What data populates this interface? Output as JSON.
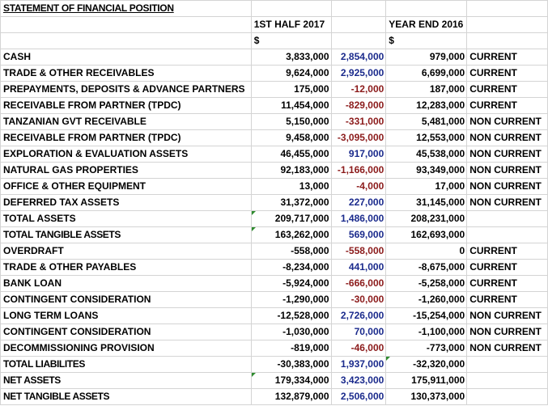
{
  "sheet": {
    "title": "STATEMENT OF FINANCIAL POSITION",
    "col_headers": {
      "current": "1ST HALF 2017",
      "prior": "YEAR END 2016"
    },
    "currency": {
      "current": "$",
      "prior": "$"
    },
    "rows": [
      {
        "label": "CASH",
        "current": "3,833,000",
        "change": "2,854,000",
        "change_sign": "pos",
        "prior": "979,000",
        "class": "CURRENT"
      },
      {
        "label": "TRADE & OTHER RECEIVABLES",
        "current": "9,624,000",
        "change": "2,925,000",
        "change_sign": "pos",
        "prior": "6,699,000",
        "class": "CURRENT"
      },
      {
        "label": "PREPAYMENTS, DEPOSITS & ADVANCE PARTNERS",
        "current": "175,000",
        "change": "-12,000",
        "change_sign": "neg",
        "prior": "187,000",
        "class": "CURRENT"
      },
      {
        "label": "RECEIVABLE FROM PARTNER (TPDC)",
        "current": "11,454,000",
        "change": "-829,000",
        "change_sign": "neg",
        "prior": "12,283,000",
        "class": "CURRENT"
      },
      {
        "label": "TANZANIAN GVT RECEIVABLE",
        "current": "5,150,000",
        "change": "-331,000",
        "change_sign": "neg",
        "prior": "5,481,000",
        "class": "NON CURRENT"
      },
      {
        "label": "RECEIVABLE FROM PARTNER (TPDC)",
        "current": "9,458,000",
        "change": "-3,095,000",
        "change_sign": "neg",
        "prior": "12,553,000",
        "class": "NON CURRENT"
      },
      {
        "label": "EXPLORATION & EVALUATION ASSETS",
        "current": "46,455,000",
        "change": "917,000",
        "change_sign": "pos",
        "prior": "45,538,000",
        "class": "NON CURRENT"
      },
      {
        "label": "NATURAL GAS PROPERTIES",
        "current": "92,183,000",
        "change": "-1,166,000",
        "change_sign": "neg",
        "prior": "93,349,000",
        "class": "NON CURRENT"
      },
      {
        "label": "OFFICE & OTHER EQUIPMENT",
        "current": "13,000",
        "change": "-4,000",
        "change_sign": "neg",
        "prior": "17,000",
        "class": "NON CURRENT"
      },
      {
        "label": "DEFERRED TAX ASSETS",
        "current": "31,372,000",
        "change": "227,000",
        "change_sign": "pos",
        "prior": "31,145,000",
        "class": "NON CURRENT"
      },
      {
        "label": "TOTAL ASSETS",
        "current": "209,717,000",
        "change": "1,486,000",
        "change_sign": "pos",
        "prior": "208,231,000",
        "class": "",
        "flag": true
      },
      {
        "label": "TOTAL TANGIBLE ASSETS",
        "current": "163,262,000",
        "change": "569,000",
        "change_sign": "pos",
        "prior": "162,693,000",
        "class": "",
        "flag": true,
        "tight": true
      },
      {
        "label": "OVERDRAFT",
        "current": "-558,000",
        "change": "-558,000",
        "change_sign": "neg",
        "prior": "0",
        "class": "CURRENT"
      },
      {
        "label": "TRADE & OTHER PAYABLES",
        "current": "-8,234,000",
        "change": "441,000",
        "change_sign": "pos",
        "prior": "-8,675,000",
        "class": "CURRENT"
      },
      {
        "label": "BANK LOAN",
        "current": "-5,924,000",
        "change": "-666,000",
        "change_sign": "neg",
        "prior": "-5,258,000",
        "class": "CURRENT"
      },
      {
        "label": "CONTINGENT CONSIDERATION",
        "current": "-1,290,000",
        "change": "-30,000",
        "change_sign": "neg",
        "prior": "-1,260,000",
        "class": "CURRENT"
      },
      {
        "label": "LONG TERM LOANS",
        "current": "-12,528,000",
        "change": "2,726,000",
        "change_sign": "pos",
        "prior": "-15,254,000",
        "class": "NON CURRENT"
      },
      {
        "label": "CONTINGENT CONSIDERATION",
        "current": "-1,030,000",
        "change": "70,000",
        "change_sign": "pos",
        "prior": "-1,100,000",
        "class": "NON CURRENT"
      },
      {
        "label": "DECOMMISSIONING PROVISION",
        "current": "-819,000",
        "change": "-46,000",
        "change_sign": "neg",
        "prior": "-773,000",
        "class": "NON CURRENT"
      },
      {
        "label": "TOTAL LIABILITES",
        "current": "-30,383,000",
        "change": "1,937,000",
        "change_sign": "pos",
        "prior": "-32,320,000",
        "class": "",
        "flag_prior": true,
        "tight": true
      },
      {
        "label": "NET ASSETS",
        "current": "179,334,000",
        "change": "3,423,000",
        "change_sign": "pos",
        "prior": "175,911,000",
        "class": "",
        "flag": true,
        "tight": true
      },
      {
        "label": "NET TANGIBLE ASSETS",
        "current": "132,879,000",
        "change": "2,506,000",
        "change_sign": "pos",
        "prior": "130,373,000",
        "class": "",
        "tight": true
      }
    ]
  }
}
